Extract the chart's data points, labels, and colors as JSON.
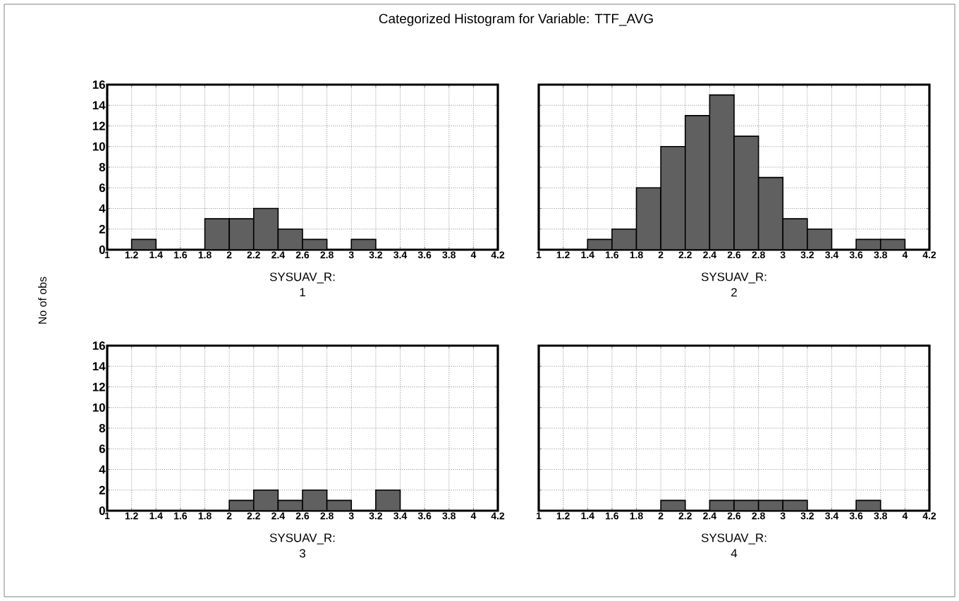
{
  "chart_data": [
    {
      "type": "histogram",
      "title": "Categorized Histogram for Variable: TTF_AVG",
      "ylabel": "No of obs",
      "xlabel": "SYSUAV_R:",
      "annotations": [
        "1"
      ],
      "bins": [
        1.0,
        1.2,
        1.4,
        1.6,
        1.8,
        2.0,
        2.2,
        2.4,
        2.6,
        2.8,
        3.0,
        3.2,
        3.4,
        3.6,
        3.8,
        4.0,
        4.2
      ],
      "values": [
        0,
        1,
        0,
        0,
        3,
        3,
        4,
        2,
        1,
        0,
        1,
        0,
        0,
        0,
        0,
        0
      ],
      "color": "#606060",
      "xlim": [
        1,
        4.2
      ],
      "xticks": [
        1,
        1.2,
        1.4,
        1.6,
        1.8,
        2,
        2.2,
        2.4,
        2.6,
        2.8,
        3,
        3.2,
        3.4,
        3.6,
        3.8,
        4,
        4.2
      ],
      "ylim": [
        0,
        16
      ],
      "yticks": [
        0,
        2,
        4,
        6,
        8,
        10,
        12,
        14,
        16
      ],
      "grid": true
    },
    {
      "type": "histogram",
      "xlabel": "SYSUAV_R:",
      "annotations": [
        "2"
      ],
      "bins": [
        1.0,
        1.2,
        1.4,
        1.6,
        1.8,
        2.0,
        2.2,
        2.4,
        2.6,
        2.8,
        3.0,
        3.2,
        3.4,
        3.6,
        3.8,
        4.0,
        4.2
      ],
      "values": [
        0,
        0,
        1,
        2,
        6,
        10,
        13,
        15,
        11,
        7,
        3,
        2,
        0,
        1,
        1,
        0
      ],
      "color": "#606060",
      "xlim": [
        1,
        4.2
      ],
      "xticks": [
        1,
        1.2,
        1.4,
        1.6,
        1.8,
        2,
        2.2,
        2.4,
        2.6,
        2.8,
        3,
        3.2,
        3.4,
        3.6,
        3.8,
        4,
        4.2
      ],
      "ylim": [
        0,
        16
      ],
      "yticks": [
        0,
        2,
        4,
        6,
        8,
        10,
        12,
        14,
        16
      ],
      "grid": true,
      "tick_labels": "x"
    },
    {
      "type": "histogram",
      "xlabel": "SYSUAV_R:",
      "annotations": [
        "3"
      ],
      "bins": [
        1.0,
        1.2,
        1.4,
        1.6,
        1.8,
        2.0,
        2.2,
        2.4,
        2.6,
        2.8,
        3.0,
        3.2,
        3.4,
        3.6,
        3.8,
        4.0,
        4.2
      ],
      "values": [
        0,
        0,
        0,
        0,
        0,
        1,
        2,
        1,
        2,
        1,
        0,
        2,
        0,
        0,
        0,
        0
      ],
      "color": "#606060",
      "xlim": [
        1,
        4.2
      ],
      "xticks": [
        1,
        1.2,
        1.4,
        1.6,
        1.8,
        2,
        2.2,
        2.4,
        2.6,
        2.8,
        3,
        3.2,
        3.4,
        3.6,
        3.8,
        4,
        4.2
      ],
      "ylim": [
        0,
        16
      ],
      "yticks": [
        0,
        2,
        4,
        6,
        8,
        10,
        12,
        14,
        16
      ],
      "grid": true
    },
    {
      "type": "histogram",
      "xlabel": "SYSUAV_R:",
      "annotations": [
        "4"
      ],
      "bins": [
        1.0,
        1.2,
        1.4,
        1.6,
        1.8,
        2.0,
        2.2,
        2.4,
        2.6,
        2.8,
        3.0,
        3.2,
        3.4,
        3.6,
        3.8,
        4.0,
        4.2
      ],
      "values": [
        0,
        0,
        0,
        0,
        0,
        1,
        0,
        1,
        1,
        1,
        1,
        0,
        0,
        1,
        0,
        0
      ],
      "color": "#606060",
      "xlim": [
        1,
        4.2
      ],
      "xticks": [
        1,
        1.2,
        1.4,
        1.6,
        1.8,
        2,
        2.2,
        2.4,
        2.6,
        2.8,
        3,
        3.2,
        3.4,
        3.6,
        3.8,
        4,
        4.2
      ],
      "ylim": [
        0,
        16
      ],
      "yticks": [
        0,
        2,
        4,
        6,
        8,
        10,
        12,
        14,
        16
      ],
      "grid": true,
      "tick_labels": "x"
    }
  ]
}
